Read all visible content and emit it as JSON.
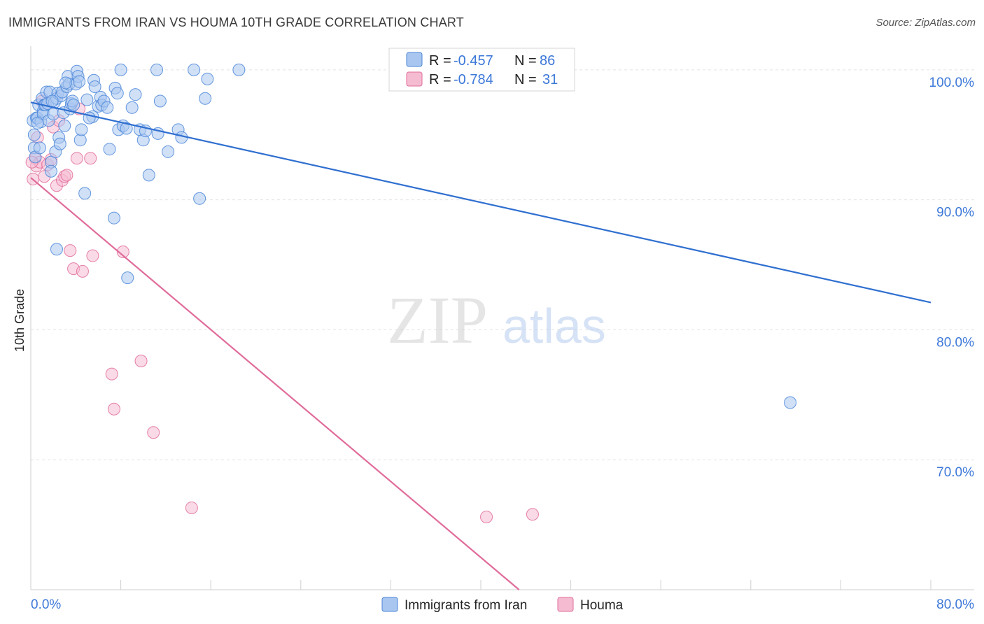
{
  "title": "IMMIGRANTS FROM IRAN VS HOUMA 10TH GRADE CORRELATION CHART",
  "source": "Source: ZipAtlas.com",
  "colors": {
    "iran": "#4a86d8",
    "iran_fill": "#a9c6f0",
    "houma": "#e06c9a",
    "houma_fill": "#f5bcd1",
    "tick": "#3c78d8",
    "grid": "#e3e3e3"
  },
  "chart_data": {
    "type": "scatter",
    "title": "IMMIGRANTS FROM IRAN VS HOUMA 10TH GRADE CORRELATION CHART",
    "xlabel": "",
    "ylabel": "10th Grade",
    "xlim": [
      0,
      80
    ],
    "ylim": [
      60,
      101.5
    ],
    "x_tick_labels": [
      "0.0%",
      "80.0%"
    ],
    "y_ticks": [
      100,
      90,
      80,
      70
    ],
    "y_tick_labels": [
      "100.0%",
      "90.0%",
      "80.0%",
      "70.0%"
    ],
    "watermark": [
      "ZIP",
      "atlas"
    ],
    "legend": {
      "entries": [
        {
          "r_label": "R =",
          "r_value": "-0.457",
          "n_label": "N =",
          "n_value": "86"
        },
        {
          "r_label": "R =",
          "r_value": "-0.784",
          "n_label": "N =",
          "n_value": "31"
        }
      ]
    },
    "series": [
      {
        "name": "Immigrants from Iran",
        "trend": {
          "x0": 0,
          "y0": 97.5,
          "x1": 80,
          "y1": 82.1
        },
        "points": [
          [
            0.2,
            96.1
          ],
          [
            0.3,
            94.0
          ],
          [
            0.3,
            95.0
          ],
          [
            0.4,
            93.3
          ],
          [
            0.5,
            96.3
          ],
          [
            0.6,
            96.3
          ],
          [
            0.7,
            97.3
          ],
          [
            0.8,
            94.0
          ],
          [
            0.9,
            96.0
          ],
          [
            1.0,
            97.8
          ],
          [
            1.1,
            96.8
          ],
          [
            1.1,
            96.6
          ],
          [
            1.2,
            97.3
          ],
          [
            1.3,
            97.3
          ],
          [
            1.4,
            98.3
          ],
          [
            1.5,
            97.4
          ],
          [
            1.6,
            96.1
          ],
          [
            1.7,
            98.3
          ],
          [
            1.8,
            92.9
          ],
          [
            1.8,
            92.2
          ],
          [
            2.0,
            96.6
          ],
          [
            2.1,
            97.5
          ],
          [
            2.2,
            93.7
          ],
          [
            2.3,
            97.8
          ],
          [
            2.4,
            98.2
          ],
          [
            2.5,
            94.8
          ],
          [
            2.6,
            94.3
          ],
          [
            2.7,
            98.0
          ],
          [
            2.8,
            98.3
          ],
          [
            2.9,
            96.7
          ],
          [
            3.0,
            95.7
          ],
          [
            3.2,
            98.7
          ],
          [
            3.3,
            99.5
          ],
          [
            3.4,
            98.9
          ],
          [
            3.5,
            97.0
          ],
          [
            3.6,
            97.4
          ],
          [
            3.7,
            97.6
          ],
          [
            3.8,
            97.3
          ],
          [
            4.0,
            98.9
          ],
          [
            4.1,
            99.9
          ],
          [
            4.2,
            99.5
          ],
          [
            4.3,
            99.1
          ],
          [
            4.4,
            94.6
          ],
          [
            4.5,
            95.4
          ],
          [
            4.8,
            90.5
          ],
          [
            5.0,
            97.7
          ],
          [
            5.5,
            96.4
          ],
          [
            5.6,
            99.2
          ],
          [
            5.7,
            98.7
          ],
          [
            6.0,
            97.2
          ],
          [
            6.2,
            97.9
          ],
          [
            6.3,
            97.3
          ],
          [
            6.5,
            97.6
          ],
          [
            6.8,
            97.1
          ],
          [
            7.0,
            93.9
          ],
          [
            7.4,
            88.6
          ],
          [
            7.5,
            98.6
          ],
          [
            7.7,
            98.2
          ],
          [
            7.8,
            95.4
          ],
          [
            8.2,
            95.7
          ],
          [
            8.5,
            95.5
          ],
          [
            8.6,
            84.0
          ],
          [
            9.0,
            97.1
          ],
          [
            9.3,
            98.1
          ],
          [
            9.7,
            95.4
          ],
          [
            10.0,
            94.6
          ],
          [
            10.2,
            95.3
          ],
          [
            10.5,
            91.9
          ],
          [
            11.3,
            95.1
          ],
          [
            11.5,
            97.6
          ],
          [
            12.2,
            93.7
          ],
          [
            13.1,
            95.4
          ],
          [
            13.4,
            94.8
          ],
          [
            15.0,
            90.1
          ],
          [
            15.5,
            97.8
          ],
          [
            15.7,
            99.3
          ],
          [
            18.5,
            100.0
          ],
          [
            11.2,
            100.0
          ],
          [
            14.5,
            100.0
          ],
          [
            2.3,
            86.2
          ],
          [
            0.6,
            95.9
          ],
          [
            1.9,
            97.6
          ],
          [
            3.1,
            99.0
          ],
          [
            5.2,
            96.3
          ],
          [
            8.0,
            100.0
          ],
          [
            67.5,
            74.4
          ]
        ]
      },
      {
        "name": "Houma",
        "trend": {
          "x0": 0,
          "y0": 91.7,
          "x1": 43.4,
          "y1": 60.0
        },
        "points": [
          [
            0.2,
            91.6
          ],
          [
            0.4,
            93.2
          ],
          [
            0.5,
            92.6
          ],
          [
            0.6,
            94.8
          ],
          [
            0.8,
            92.9
          ],
          [
            1.0,
            97.6
          ],
          [
            1.2,
            91.8
          ],
          [
            1.5,
            92.7
          ],
          [
            1.8,
            93.1
          ],
          [
            2.0,
            95.6
          ],
          [
            2.3,
            91.1
          ],
          [
            2.5,
            96.1
          ],
          [
            2.8,
            91.5
          ],
          [
            3.0,
            91.8
          ],
          [
            3.2,
            91.9
          ],
          [
            3.5,
            86.1
          ],
          [
            3.8,
            84.7
          ],
          [
            4.1,
            93.2
          ],
          [
            4.3,
            97.0
          ],
          [
            4.6,
            84.5
          ],
          [
            5.3,
            93.2
          ],
          [
            5.5,
            85.7
          ],
          [
            7.2,
            76.6
          ],
          [
            7.4,
            73.9
          ],
          [
            8.2,
            86.0
          ],
          [
            9.8,
            77.6
          ],
          [
            10.9,
            72.1
          ],
          [
            14.3,
            66.3
          ],
          [
            40.5,
            65.6
          ],
          [
            44.6,
            65.8
          ],
          [
            0.1,
            92.9
          ]
        ]
      }
    ]
  },
  "bottom_legend": [
    {
      "label": "Immigrants from Iran"
    },
    {
      "label": "Houma"
    }
  ]
}
